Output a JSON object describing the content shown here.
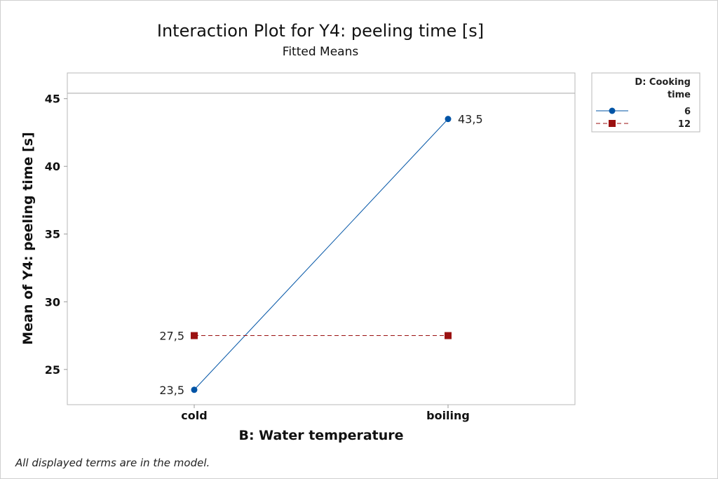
{
  "chart_data": {
    "type": "line",
    "title": "Interaction Plot for Y4: peeling time [s]",
    "subtitle": "Fitted Means",
    "xlabel": "B: Water temperature",
    "ylabel": "Mean of Y4: peeling time [s]",
    "categories": [
      "cold",
      "boiling"
    ],
    "ylim": [
      22.4,
      46.9
    ],
    "yticks": [
      25,
      30,
      35,
      40,
      45
    ],
    "reference_line": 45.4,
    "legend": {
      "title_line1": "D: Cooking",
      "title_line2": "time",
      "placement": "right"
    },
    "series": [
      {
        "name": "6",
        "values": [
          23.5,
          43.5
        ],
        "labels": [
          "23,5",
          "43,5"
        ],
        "color": "#0054a6",
        "marker": "circle",
        "style": "solid"
      },
      {
        "name": "12",
        "values": [
          27.5,
          27.5
        ],
        "labels": [
          "27,5",
          ""
        ],
        "color": "#9b1111",
        "marker": "square",
        "style": "dashed"
      }
    ],
    "footnote": "All displayed terms are in the model."
  }
}
